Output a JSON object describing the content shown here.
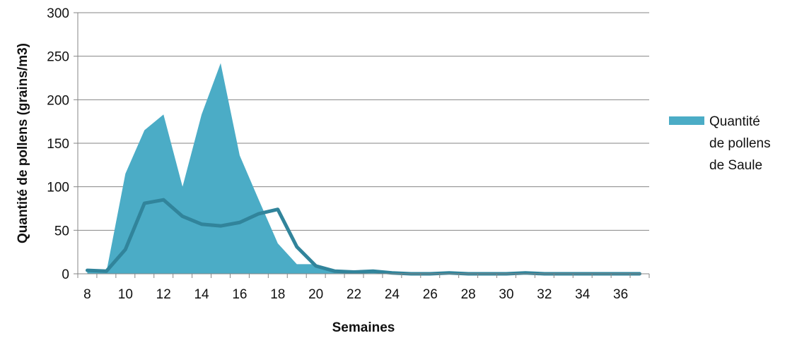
{
  "chart_data": {
    "type": "area",
    "title": "",
    "xlabel": "Semaines",
    "ylabel": "Quantité de pollens (grains/m3)",
    "x": [
      8,
      9,
      10,
      11,
      12,
      13,
      14,
      15,
      16,
      17,
      18,
      19,
      20,
      21,
      22,
      23,
      24,
      25,
      26,
      27,
      28,
      29,
      30,
      31,
      32,
      33,
      34,
      35,
      36,
      37
    ],
    "xlim": [
      7.5,
      37.5
    ],
    "ylim": [
      0,
      300
    ],
    "x_ticks": [
      8,
      10,
      12,
      14,
      16,
      18,
      20,
      22,
      24,
      26,
      28,
      30,
      32,
      34,
      36
    ],
    "y_ticks": [
      0,
      50,
      100,
      150,
      200,
      250,
      300
    ],
    "grid": true,
    "legend": "right",
    "series": [
      {
        "name": "Quantité de pollens de Saule",
        "kind": "area",
        "color": "#4BACC6",
        "values": [
          4,
          2,
          115,
          165,
          183,
          100,
          183,
          242,
          136,
          85,
          35,
          11,
          11,
          3,
          2,
          2,
          1,
          0,
          0,
          0,
          0,
          0,
          0,
          0,
          0,
          0,
          0,
          0,
          0,
          0
        ]
      },
      {
        "kind": "line",
        "color": "#31849B",
        "values": [
          4,
          3,
          28,
          81,
          85,
          66,
          57,
          55,
          59,
          69,
          74,
          31,
          9,
          3,
          2,
          3,
          1,
          0,
          0,
          1,
          0,
          0,
          0,
          1,
          0,
          0,
          0,
          0,
          0,
          0
        ]
      }
    ],
    "legend_lines": [
      "Quantité",
      "de pollens",
      "de Saule"
    ]
  }
}
